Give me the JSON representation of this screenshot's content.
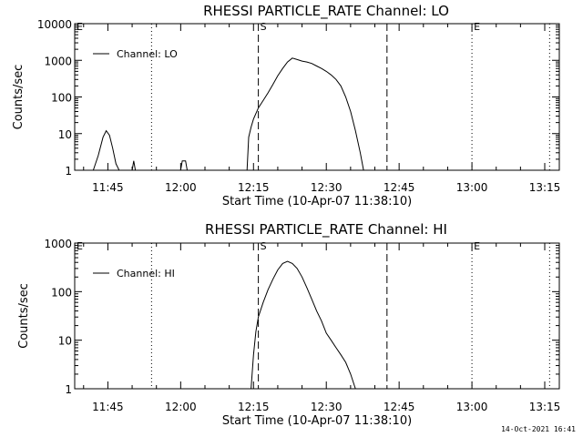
{
  "chart_data": [
    {
      "type": "line",
      "title": "RHESSI PARTICLE_RATE Channel: LO",
      "xlabel": "Start Time (10-Apr-07 11:38:10)",
      "ylabel": "Counts/sec",
      "yscale": "log",
      "ylim": [
        1,
        10000
      ],
      "xlim": [
        "11:38:10",
        "13:18:00"
      ],
      "x_tick_labels": [
        "11:45",
        "12:00",
        "12:15",
        "12:30",
        "12:45",
        "13:00",
        "13:15"
      ],
      "y_tick_labels": [
        "1",
        "10",
        "100",
        "1000",
        "10000"
      ],
      "legend": {
        "position": "top-left",
        "entries": [
          "Channel: LO"
        ]
      },
      "markers": [
        {
          "label": "E",
          "time": "11:38:10",
          "style": "dotted"
        },
        {
          "label": "",
          "time": "11:54:00",
          "style": "dotted"
        },
        {
          "label": "S",
          "time": "12:16:00",
          "style": "dashed"
        },
        {
          "label": "",
          "time": "12:42:30",
          "style": "dashed"
        },
        {
          "label": "E",
          "time": "13:00:00",
          "style": "dotted"
        },
        {
          "label": "",
          "time": "13:16:00",
          "style": "dotted"
        }
      ],
      "series": [
        {
          "name": "Channel: LO",
          "segments": [
            {
              "x": [
                "11:42:00",
                "11:43:00",
                "11:44:00",
                "11:44:40",
                "11:45:20",
                "11:46:00",
                "11:46:40",
                "11:47:20",
                "11:48:00"
              ],
              "y": [
                1,
                2.5,
                8,
                12,
                9,
                4,
                1.5,
                1,
                1
              ]
            },
            {
              "x": [
                "11:50:00",
                "11:50:20",
                "11:50:40"
              ],
              "y": [
                1,
                1.8,
                1
              ]
            },
            {
              "x": [
                "12:00:00",
                "12:00:20",
                "12:01:00",
                "12:01:20"
              ],
              "y": [
                1,
                1.8,
                1.8,
                1
              ]
            },
            {
              "x": [
                "12:13:40",
                "12:14:00",
                "12:14:30",
                "12:15:00",
                "12:16:00",
                "12:17:00",
                "12:18:00",
                "12:19:00",
                "12:20:00",
                "12:21:00",
                "12:22:00",
                "12:23:00",
                "12:24:00",
                "12:25:00",
                "12:26:00",
                "12:27:00",
                "12:28:00",
                "12:29:00",
                "12:30:00",
                "12:31:00",
                "12:32:00",
                "12:33:00",
                "12:34:00",
                "12:35:00",
                "12:36:00",
                "12:37:00",
                "12:37:40"
              ],
              "y": [
                1,
                8,
                15,
                25,
                50,
                80,
                130,
                220,
                380,
                600,
                900,
                1150,
                1050,
                950,
                900,
                820,
                700,
                600,
                500,
                400,
                300,
                200,
                100,
                40,
                12,
                3,
                1
              ]
            }
          ]
        }
      ]
    },
    {
      "type": "line",
      "title": "RHESSI PARTICLE_RATE Channel: HI",
      "xlabel": "Start Time (10-Apr-07 11:38:10)",
      "ylabel": "Counts/sec",
      "yscale": "log",
      "ylim": [
        1,
        1000
      ],
      "xlim": [
        "11:38:10",
        "13:18:00"
      ],
      "x_tick_labels": [
        "11:45",
        "12:00",
        "12:15",
        "12:30",
        "12:45",
        "13:00",
        "13:15"
      ],
      "y_tick_labels": [
        "1",
        "10",
        "100",
        "1000"
      ],
      "legend": {
        "position": "top-left",
        "entries": [
          "Channel: HI"
        ]
      },
      "markers": [
        {
          "label": "E",
          "time": "11:38:10",
          "style": "dotted"
        },
        {
          "label": "",
          "time": "11:54:00",
          "style": "dotted"
        },
        {
          "label": "S",
          "time": "12:16:00",
          "style": "dashed"
        },
        {
          "label": "",
          "time": "12:42:30",
          "style": "dashed"
        },
        {
          "label": "E",
          "time": "13:00:00",
          "style": "dotted"
        },
        {
          "label": "",
          "time": "13:16:00",
          "style": "dotted"
        }
      ],
      "series": [
        {
          "name": "Channel: HI",
          "segments": [
            {
              "x": [
                "12:14:30",
                "12:15:00",
                "12:15:30",
                "12:16:00",
                "12:17:00",
                "12:18:00",
                "12:19:00",
                "12:20:00",
                "12:21:00",
                "12:22:00",
                "12:23:00",
                "12:24:00",
                "12:25:00",
                "12:26:00",
                "12:27:00",
                "12:28:00",
                "12:29:00",
                "12:30:00",
                "12:31:00",
                "12:32:00",
                "12:33:00",
                "12:34:00",
                "12:35:00",
                "12:36:00"
              ],
              "y": [
                1,
                5,
                15,
                30,
                60,
                110,
                180,
                280,
                380,
                420,
                380,
                300,
                200,
                120,
                70,
                40,
                25,
                14,
                10,
                7,
                5,
                3.5,
                2,
                1
              ]
            }
          ]
        }
      ]
    }
  ],
  "footer": {
    "timestamp": "14-Oct-2021 16:41"
  }
}
